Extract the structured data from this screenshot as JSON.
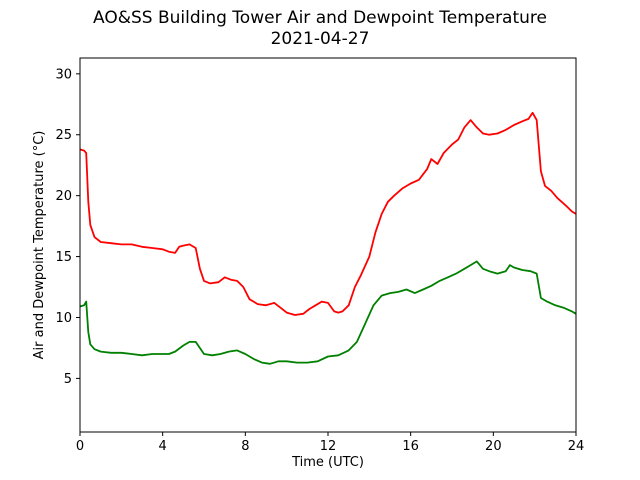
{
  "chart_data": {
    "type": "line",
    "title": "AO&SS Building Tower Air and Dewpoint Temperature",
    "subtitle": "2021-04-27",
    "xlabel": "Time (UTC)",
    "ylabel": "Air and Dewpoint Temperature (°C)",
    "xlim": [
      0,
      24
    ],
    "ylim": [
      0.6,
      31.3
    ],
    "xticks": [
      0,
      4,
      8,
      12,
      16,
      20,
      24
    ],
    "yticks": [
      5,
      10,
      15,
      20,
      25,
      30
    ],
    "grid": false,
    "series": [
      {
        "color": "#ff0000",
        "x": [
          0,
          0.2,
          0.3,
          0.4,
          0.5,
          0.7,
          1.0,
          1.5,
          2.0,
          2.5,
          3.0,
          3.5,
          4.0,
          4.3,
          4.6,
          4.8,
          5.0,
          5.3,
          5.6,
          5.8,
          6.0,
          6.3,
          6.7,
          7.0,
          7.3,
          7.6,
          7.9,
          8.2,
          8.6,
          9.0,
          9.4,
          9.7,
          10.0,
          10.4,
          10.8,
          11.1,
          11.4,
          11.7,
          12.0,
          12.3,
          12.5,
          12.7,
          13.0,
          13.3,
          13.6,
          14.0,
          14.3,
          14.6,
          14.9,
          15.2,
          15.6,
          16.0,
          16.4,
          16.8,
          17.0,
          17.3,
          17.6,
          18.0,
          18.3,
          18.6,
          18.9,
          19.2,
          19.5,
          19.8,
          20.2,
          20.6,
          21.0,
          21.4,
          21.7,
          21.9,
          22.1,
          22.3,
          22.5,
          22.8,
          23.1,
          23.5,
          23.8,
          24.0
        ],
        "y": [
          23.8,
          23.7,
          23.5,
          19.5,
          17.6,
          16.6,
          16.2,
          16.1,
          16.0,
          16.0,
          15.8,
          15.7,
          15.6,
          15.4,
          15.3,
          15.8,
          15.9,
          16.0,
          15.7,
          14.0,
          13.0,
          12.8,
          12.9,
          13.3,
          13.1,
          13.0,
          12.5,
          11.5,
          11.1,
          11.0,
          11.2,
          10.8,
          10.4,
          10.2,
          10.3,
          10.7,
          11.0,
          11.3,
          11.2,
          10.5,
          10.4,
          10.5,
          11.0,
          12.5,
          13.5,
          15.0,
          17.0,
          18.5,
          19.5,
          20.0,
          20.6,
          21.0,
          21.3,
          22.2,
          23.0,
          22.6,
          23.5,
          24.2,
          24.6,
          25.6,
          26.2,
          25.6,
          25.1,
          25.0,
          25.1,
          25.4,
          25.8,
          26.1,
          26.3,
          26.8,
          26.2,
          22.0,
          20.8,
          20.4,
          19.8,
          19.2,
          18.7,
          18.5
        ]
      },
      {
        "color": "#008000",
        "x": [
          0,
          0.2,
          0.3,
          0.4,
          0.5,
          0.7,
          1.0,
          1.5,
          2.0,
          2.5,
          3.0,
          3.5,
          4.0,
          4.3,
          4.6,
          5.0,
          5.3,
          5.6,
          6.0,
          6.4,
          6.8,
          7.2,
          7.6,
          8.0,
          8.4,
          8.8,
          9.2,
          9.6,
          10.0,
          10.5,
          11.0,
          11.5,
          12.0,
          12.5,
          13.0,
          13.4,
          13.8,
          14.2,
          14.6,
          15.0,
          15.4,
          15.8,
          16.2,
          16.6,
          17.0,
          17.4,
          17.8,
          18.2,
          18.6,
          18.9,
          19.2,
          19.5,
          19.8,
          20.2,
          20.6,
          20.8,
          21.0,
          21.4,
          21.8,
          22.1,
          22.3,
          22.6,
          23.0,
          23.4,
          23.8,
          24.0
        ],
        "y": [
          10.9,
          11.0,
          11.3,
          8.8,
          7.8,
          7.4,
          7.2,
          7.1,
          7.1,
          7.0,
          6.9,
          7.0,
          7.0,
          7.0,
          7.2,
          7.7,
          8.0,
          8.0,
          7.0,
          6.9,
          7.0,
          7.2,
          7.3,
          7.0,
          6.6,
          6.3,
          6.2,
          6.4,
          6.4,
          6.3,
          6.3,
          6.4,
          6.8,
          6.9,
          7.3,
          8.0,
          9.5,
          11.0,
          11.8,
          12.0,
          12.1,
          12.3,
          12.0,
          12.3,
          12.6,
          13.0,
          13.3,
          13.6,
          14.0,
          14.3,
          14.6,
          14.0,
          13.8,
          13.6,
          13.8,
          14.3,
          14.1,
          13.9,
          13.8,
          13.6,
          11.6,
          11.3,
          11.0,
          10.8,
          10.5,
          10.3
        ]
      }
    ]
  }
}
